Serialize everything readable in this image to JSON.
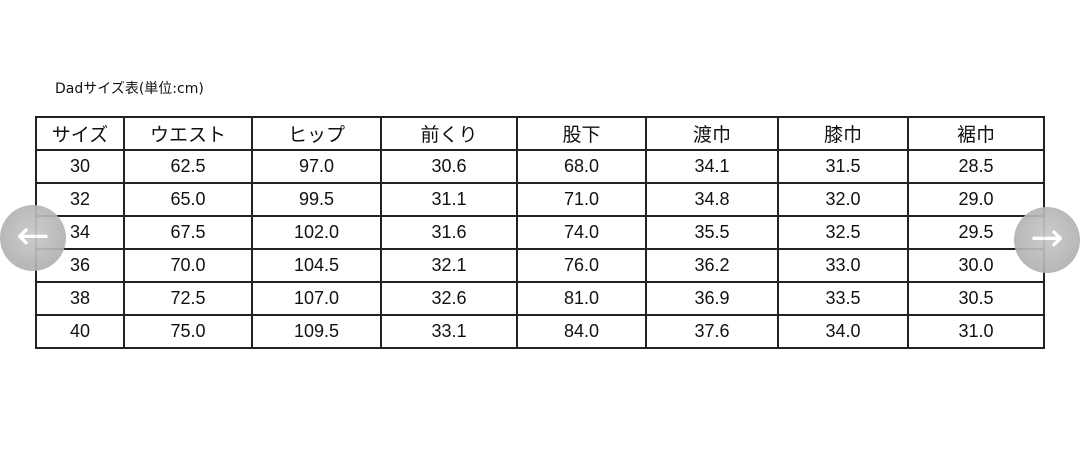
{
  "caption": "Dadサイズ表(単位:cm)",
  "headers": [
    "サイズ",
    "ウエスト",
    "ヒップ",
    "前くり",
    "股下",
    "渡巾",
    "膝巾",
    "裾巾"
  ],
  "rows": [
    [
      "30",
      "62.5",
      "97.0",
      "30.6",
      "68.0",
      "34.1",
      "31.5",
      "28.5"
    ],
    [
      "32",
      "65.0",
      "99.5",
      "31.1",
      "71.0",
      "34.8",
      "32.0",
      "29.0"
    ],
    [
      "34",
      "67.5",
      "102.0",
      "31.6",
      "74.0",
      "35.5",
      "32.5",
      "29.5"
    ],
    [
      "36",
      "70.0",
      "104.5",
      "32.1",
      "76.0",
      "36.2",
      "33.0",
      "30.0"
    ],
    [
      "38",
      "72.5",
      "107.0",
      "32.6",
      "81.0",
      "36.9",
      "33.5",
      "30.5"
    ],
    [
      "40",
      "75.0",
      "109.5",
      "33.1",
      "84.0",
      "37.6",
      "34.0",
      "31.0"
    ]
  ],
  "nav": {
    "prev_icon": "arrow-left-icon",
    "next_icon": "arrow-right-icon",
    "prev": "←",
    "next": "→"
  }
}
